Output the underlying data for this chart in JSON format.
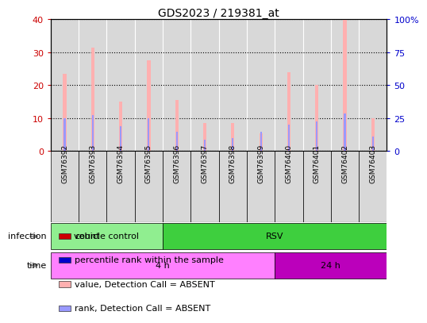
{
  "title": "GDS2023 / 219381_at",
  "samples": [
    "GSM76392",
    "GSM76393",
    "GSM76394",
    "GSM76395",
    "GSM76396",
    "GSM76397",
    "GSM76398",
    "GSM76399",
    "GSM76400",
    "GSM76401",
    "GSM76402",
    "GSM76403"
  ],
  "pink_values": [
    23.5,
    31.5,
    15,
    27.5,
    15.5,
    8.5,
    8.5,
    5.5,
    24,
    20,
    40,
    10
  ],
  "blue_values": [
    10,
    11,
    7.5,
    10,
    6,
    3.5,
    4,
    6,
    8,
    9,
    11.5,
    4.5
  ],
  "ylim_left": [
    0,
    40
  ],
  "ylim_right": [
    0,
    100
  ],
  "yticks_left": [
    0,
    10,
    20,
    30,
    40
  ],
  "ytick_labels_right": [
    "0",
    "25",
    "50",
    "75",
    "100%"
  ],
  "infection_groups": [
    {
      "label": "vehicle control",
      "start": 0,
      "end": 4,
      "color": "#90ee90"
    },
    {
      "label": "RSV",
      "start": 4,
      "end": 12,
      "color": "#3ecf3e"
    }
  ],
  "time_groups": [
    {
      "label": "4 h",
      "start": 0,
      "end": 8,
      "color": "#ff80ff"
    },
    {
      "label": "24 h",
      "start": 8,
      "end": 12,
      "color": "#bb00bb"
    }
  ],
  "pink_color": "#ffb0b0",
  "blue_color": "#9999ff",
  "red_color": "#cc0000",
  "dark_blue_color": "#0000cc",
  "legend_items": [
    {
      "label": "count",
      "color": "#cc0000"
    },
    {
      "label": "percentile rank within the sample",
      "color": "#0000cc"
    },
    {
      "label": "value, Detection Call = ABSENT",
      "color": "#ffb0b0"
    },
    {
      "label": "rank, Detection Call = ABSENT",
      "color": "#9999ff"
    }
  ],
  "infection_label": "infection",
  "time_label": "time",
  "tick_label_color_left": "#cc0000",
  "tick_label_color_right": "#0000cc",
  "col_bg_color": "#d8d8d8"
}
